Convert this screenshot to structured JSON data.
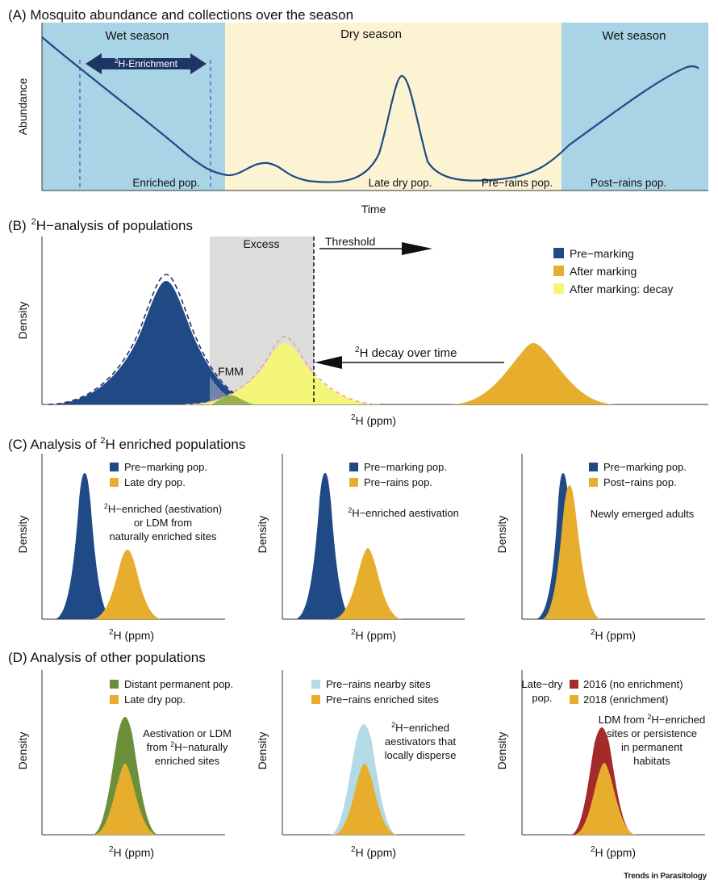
{
  "figure": {
    "credit": "Trends in Parasitology",
    "colors": {
      "wet": "#a9d4e6",
      "dry": "#fcf3d3",
      "navy": "#1f4a85",
      "amber": "#e7ae2e",
      "lightyellow": "#f4f67a",
      "green": "#6b8f3a",
      "lightblue": "#b2dbe6",
      "red": "#a52a2a",
      "excess": "#dcdcdc"
    }
  },
  "panelA": {
    "title": "(A)  Mosquito abundance and collections over the season",
    "season_left": "Wet season",
    "season_mid": "Dry season",
    "season_right": "Wet season",
    "enrichment_sup": "2",
    "enrichment": "H-Enrichment",
    "ylabel": "Abundance",
    "xlabel": "Time",
    "pop_enriched": "Enriched pop.",
    "pop_latedry": "Late dry pop.",
    "pop_prerains": "Pre−rains pop.",
    "pop_postrains": "Post−rains pop."
  },
  "panelB": {
    "title_pre": "(B)",
    "title_sup": "2",
    "title_post": "H−analysis of populations",
    "excess": "Excess",
    "threshold": "Threshold",
    "fmm": "FMM",
    "decay_sup": "2",
    "decay": "H decay over time",
    "ylabel": "Density",
    "xlabel_sup": "2",
    "xlabel": "H (ppm)",
    "legend": [
      "Pre−marking",
      "After marking",
      "After marking: decay"
    ]
  },
  "panelC": {
    "title_pre": "(C)  Analysis of ",
    "title_sup": "2",
    "title_post": "H enriched populations",
    "ylabel": "Density",
    "xlabel_sup": "2",
    "xlabel": "H (ppm)",
    "c1": {
      "legend": [
        "Pre−marking pop.",
        "Late dry pop."
      ],
      "note1_sup": "2",
      "note1": "H−enriched (aestivation)",
      "note2": "or LDM from",
      "note3": "naturally enriched sites"
    },
    "c2": {
      "legend": [
        "Pre−marking pop.",
        "Pre−rains pop."
      ],
      "note1_sup": "2",
      "note1": "H−enriched aestivation"
    },
    "c3": {
      "legend": [
        "Pre−marking pop.",
        "Post−rains pop."
      ],
      "note1": "Newly emerged adults"
    }
  },
  "panelD": {
    "title": "(D)  Analysis of other populations",
    "ylabel": "Density",
    "xlabel_sup": "2",
    "xlabel": "H (ppm)",
    "d1": {
      "legend": [
        "Distant permanent pop.",
        "Late dry pop."
      ],
      "note1": "Aestivation or LDM",
      "note2_pre": "from ",
      "note2_sup": "2",
      "note2_post": "H−naturally",
      "note3": "enriched sites"
    },
    "d2": {
      "legend": [
        "Pre−rains nearby sites",
        "Pre−rains enriched sites"
      ],
      "note1_sup": "2",
      "note1": "H−enriched",
      "note2": "aestivators that",
      "note3": "locally disperse"
    },
    "d3": {
      "side1": "Late−dry",
      "side2": "pop.",
      "legend": [
        "2016 (no enrichment)",
        "2018 (enrichment)"
      ],
      "note1_pre": "LDM from ",
      "note1_sup": "2",
      "note1_post": "H−enriched",
      "note2": "sites or persistence",
      "note3": "in permanent",
      "note4": "habitats"
    }
  }
}
